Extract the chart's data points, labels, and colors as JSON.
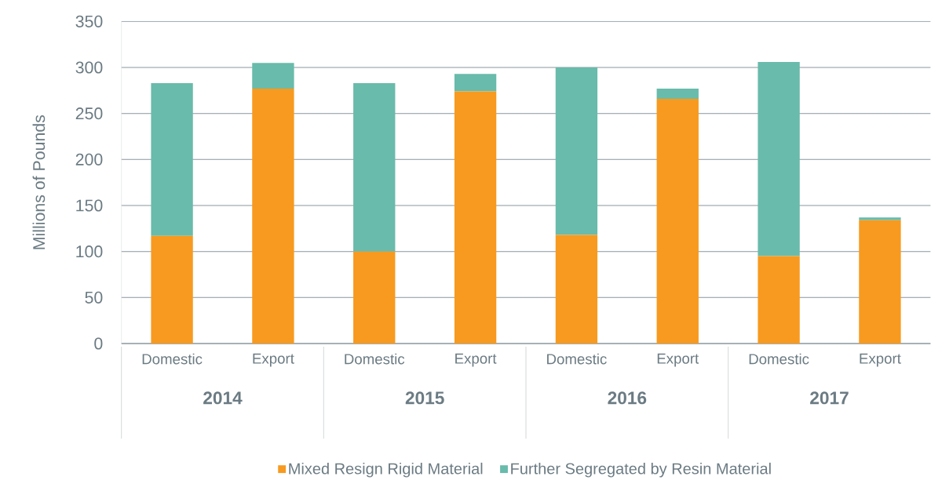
{
  "chart_data": {
    "type": "bar",
    "stacked": true,
    "ylabel": "Millions of Pounds",
    "categories": [
      "Domestic",
      "Export",
      "Domestic",
      "Export",
      "Domestic",
      "Export",
      "Domestic",
      "Export"
    ],
    "series": [
      {
        "name": "Mixed Resign Rigid Material",
        "color": "#f79a1f",
        "values": [
          117,
          277,
          100,
          274,
          118,
          266,
          95,
          134
        ]
      },
      {
        "name": "Further Segregated by Resin Material",
        "color": "#69bbab",
        "values": [
          166,
          28,
          183,
          19,
          182,
          11,
          211,
          3
        ]
      }
    ],
    "annotations": [
      "2014",
      "2015",
      "2016",
      "2017"
    ],
    "ylim": [
      0,
      350
    ],
    "yticks": [
      0,
      50,
      100,
      150,
      200,
      250,
      300,
      350
    ],
    "grid": "y",
    "legend": "bottom"
  }
}
